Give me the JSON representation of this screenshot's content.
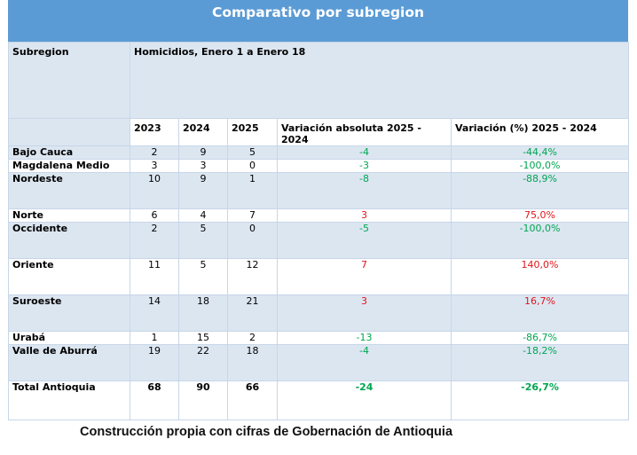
{
  "title": "Comparativo por subregion",
  "header": {
    "subregion": "Subregion",
    "group": "Homicidios, Enero 1 a Enero 18",
    "y2023": "2023",
    "y2024": "2024",
    "y2025": "2025",
    "abs": "Variación absoluta 2025 - 2024",
    "pct": "Variación (%) 2025 - 2024"
  },
  "rows": [
    {
      "name": "Bajo Cauca",
      "y2023": "2",
      "y2024": "9",
      "y2025": "5",
      "abs": "-4",
      "pct": "-44,4%"
    },
    {
      "name": "Magdalena Medio",
      "y2023": "3",
      "y2024": "3",
      "y2025": "0",
      "abs": "-3",
      "pct": "-100,0%"
    },
    {
      "name": "Nordeste",
      "y2023": "10",
      "y2024": "9",
      "y2025": "1",
      "abs": "-8",
      "pct": "-88,9%"
    },
    {
      "name": "Norte",
      "y2023": "6",
      "y2024": "4",
      "y2025": "7",
      "abs": "3",
      "pct": "75,0%"
    },
    {
      "name": "Occidente",
      "y2023": "2",
      "y2024": "5",
      "y2025": "0",
      "abs": "-5",
      "pct": "-100,0%"
    },
    {
      "name": "Oriente",
      "y2023": "11",
      "y2024": "5",
      "y2025": "12",
      "abs": "7",
      "pct": "140,0%"
    },
    {
      "name": "Suroeste",
      "y2023": "14",
      "y2024": "18",
      "y2025": "21",
      "abs": "3",
      "pct": "16,7%"
    },
    {
      "name": "Urabá",
      "y2023": "1",
      "y2024": "15",
      "y2025": "2",
      "abs": "-13",
      "pct": "-86,7%"
    },
    {
      "name": "Valle de Aburrá",
      "y2023": "19",
      "y2024": "22",
      "y2025": "18",
      "abs": "-4",
      "pct": "-18,2%"
    }
  ],
  "total": {
    "name": "Total Antioquia",
    "y2023": "68",
    "y2024": "90",
    "y2025": "66",
    "abs": "-24",
    "pct": "-26,7%"
  },
  "caption": "Construcción propia con cifras de Gobernación de Antioquia",
  "colors": {
    "header_blue": "#5b9bd5",
    "band_blue": "#dce6f1",
    "decrease_green": "#00a651",
    "increase_red": "#e0151b"
  }
}
